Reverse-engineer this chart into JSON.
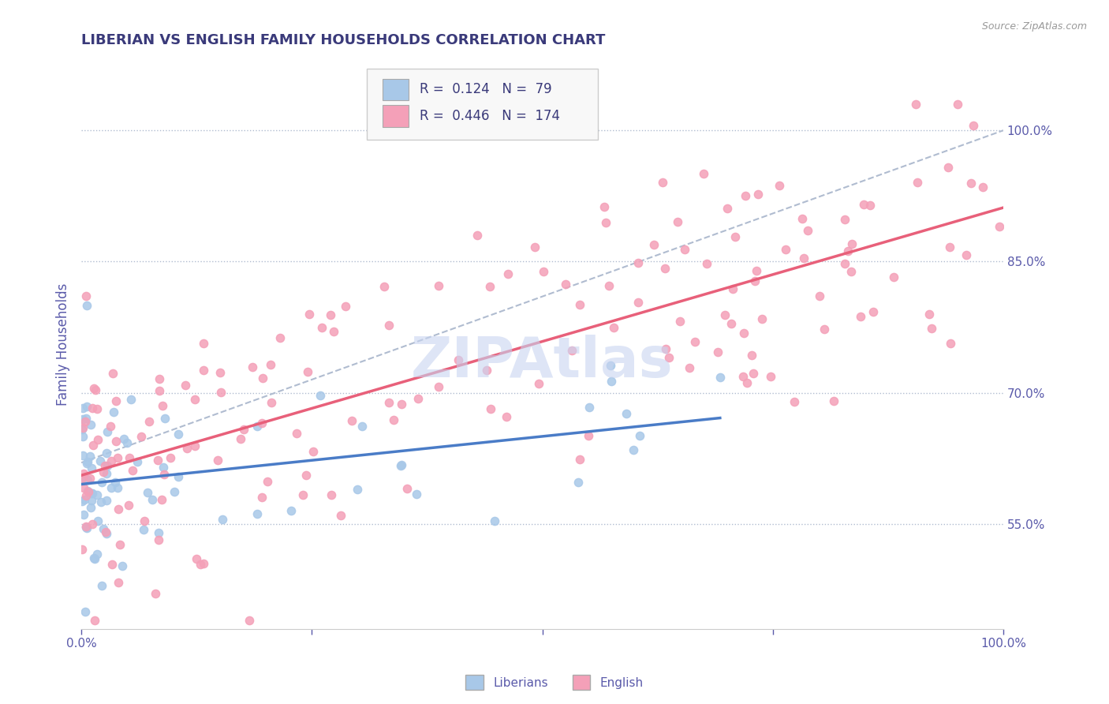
{
  "title": "LIBERIAN VS ENGLISH FAMILY HOUSEHOLDS CORRELATION CHART",
  "source": "Source: ZipAtlas.com",
  "ylabel": "Family Households",
  "xlim": [
    0,
    100
  ],
  "ylim": [
    43,
    108
  ],
  "yticks": [
    55,
    70,
    85,
    100
  ],
  "ytick_labels": [
    "55.0%",
    "70.0%",
    "85.0%",
    "100.0%"
  ],
  "liberian_color": "#a8c8e8",
  "english_color": "#f4a0b8",
  "liberian_R": 0.124,
  "liberian_N": 79,
  "english_R": 0.446,
  "english_N": 174,
  "title_color": "#3a3a7a",
  "legend_text_color": "#3a3a7a",
  "axis_color": "#5a5aaa",
  "watermark_color": "#c8d4f0",
  "regression_line_liberian_color": "#4a7cc7",
  "regression_line_english_color": "#e8607a",
  "dashed_line_color": "#b0bcd0",
  "liberian_seed": 42,
  "english_seed": 99
}
